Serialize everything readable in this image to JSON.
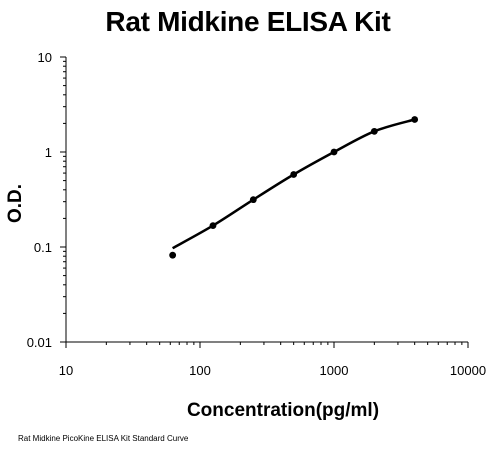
{
  "chart_data": {
    "type": "scatter",
    "title": "Rat Midkine ELISA Kit",
    "xlabel": "Concentration(pg/ml)",
    "ylabel": "O.D.",
    "xscale": "log",
    "yscale": "log",
    "xlim": [
      10,
      10000
    ],
    "ylim": [
      0.01,
      10
    ],
    "x_ticks": [
      "10",
      "100",
      "1000",
      "10000"
    ],
    "y_ticks": [
      "0.01",
      "0.1",
      "1",
      "10"
    ],
    "grid": false,
    "legend": "none",
    "series": [
      {
        "x": [
          62.5,
          125,
          250,
          500,
          1000,
          2000,
          4000
        ],
        "y": [
          0.082,
          0.168,
          0.315,
          0.58,
          1.0,
          1.65,
          2.2
        ],
        "marker_color": "#000000",
        "fit_line": "smooth"
      }
    ]
  },
  "caption": "Rat Midkine PicoKine ELISA Kit Standard Curve"
}
